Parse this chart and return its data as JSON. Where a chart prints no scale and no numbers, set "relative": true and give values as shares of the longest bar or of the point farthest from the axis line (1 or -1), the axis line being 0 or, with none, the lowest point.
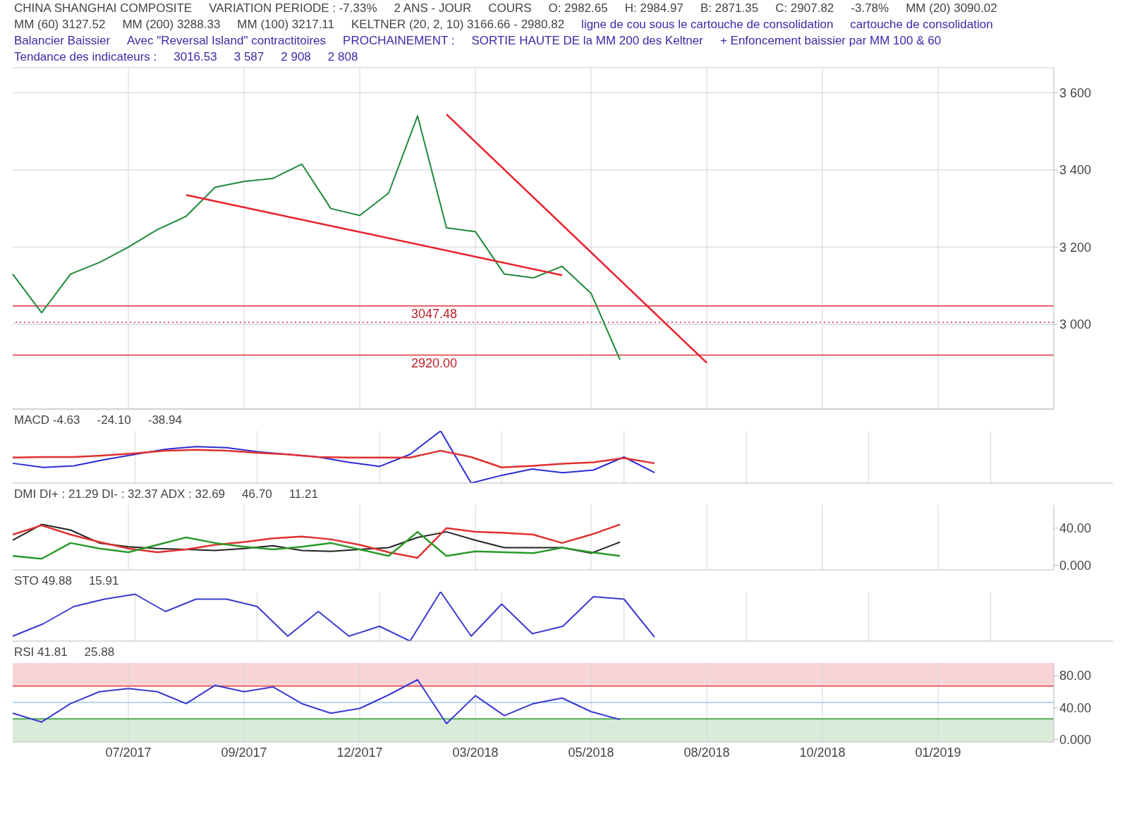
{
  "chart_data": [
    {
      "type": "line",
      "title": "CHINA SHANGHAI COMPOSITE",
      "subtitle": "VARIATION PERIODE : -7.33%",
      "annotations": [
        "2 ANS - JOUR",
        "COURS",
        "O: 2982.65",
        "H: 2984.97",
        "B: 2871.35",
        "C: 2907.82",
        "-3.78%",
        "MM (20)  3090.02",
        "MM (60)  3127.52",
        "MM (200)  3288.33",
        "MM (100)  3217.11",
        "KELTNER (20, 2, 10)  3166.66 - 2980.82",
        "ligne de cou sous le cartouche de consolidation",
        "cartouche de consolidation",
        "Balancier Baissier",
        "Avec \"Reversal Island\" contractitoires",
        "PROCHAINEMENT :",
        "SORTIE HAUTE DE la MM 200 des Keltner",
        "+ Enfoncement baissier par MM 100 & 60",
        "Tendance des indicateurs :",
        "3016.53",
        "3 587",
        "2 908",
        "2 808"
      ],
      "categories": [
        null,
        null,
        null,
        null,
        null,
        null,
        null,
        null,
        null,
        null,
        null,
        null,
        null,
        null,
        null,
        null,
        null,
        null,
        null,
        null,
        null,
        null,
        null,
        null,
        null,
        null,
        null,
        null,
        null,
        null,
        null,
        null,
        null,
        null,
        null,
        null,
        null
      ],
      "series": [
        {
          "color": "#1f8a3c",
          "values": [
            3130,
            3030,
            3130,
            3160,
            3200,
            3245,
            3280,
            3355,
            3370,
            3378,
            3415,
            3300,
            3282,
            3340,
            3540,
            3250,
            3240,
            3130,
            3120,
            3150,
            3080,
            2908,
            null,
            null,
            null,
            null,
            null,
            null,
            null,
            null,
            null,
            null,
            null,
            null,
            null,
            null,
            null
          ]
        },
        {
          "color": "#e8202a",
          "values": [
            null,
            null,
            null,
            null,
            null,
            null,
            3335,
            null,
            null,
            null,
            null,
            null,
            null,
            null,
            null,
            null,
            null,
            null,
            null,
            3127,
            null,
            null,
            null,
            null,
            null,
            null,
            null,
            null,
            null,
            null,
            null,
            null,
            null,
            null,
            null,
            null,
            null
          ]
        },
        {
          "color": "#e8202a",
          "values": [
            null,
            null,
            null,
            null,
            null,
            null,
            null,
            null,
            null,
            null,
            null,
            null,
            null,
            null,
            null,
            3544,
            null,
            null,
            null,
            null,
            null,
            null,
            null,
            null,
            2900,
            null,
            null,
            null,
            null,
            null,
            null,
            null,
            null,
            null,
            null,
            null,
            null
          ]
        }
      ],
      "ref_lines": [
        {
          "axis": "y",
          "value": 3047.48,
          "label": "3047.48",
          "color": "#e0303a"
        },
        {
          "axis": "y",
          "value": 2920,
          "label": "2920.00",
          "color": "#e0303a"
        },
        {
          "axis": "y",
          "value": 3005,
          "color": "#e0303a",
          "line_style": "dotted"
        }
      ],
      "ylim": [
        2780,
        3665
      ],
      "yticks": [
        {
          "value": 3000,
          "label": "3 000"
        },
        {
          "value": 3200,
          "label": "3 200"
        },
        {
          "value": 3400,
          "label": "3 400"
        },
        {
          "value": 3600,
          "label": "3 600"
        }
      ],
      "grid": true,
      "tick_labels": "y"
    },
    {
      "type": "line",
      "title": "MACD  -4.63",
      "relative": true,
      "annotations": [
        "-24.10",
        "-38.94"
      ],
      "categories": [
        null,
        null,
        null,
        null,
        null,
        null,
        null,
        null,
        null,
        null,
        null,
        null,
        null,
        null,
        null,
        null,
        null,
        null,
        null,
        null,
        null,
        null,
        null,
        null,
        null,
        null,
        null,
        null,
        null,
        null,
        null,
        null,
        null,
        null,
        null,
        null,
        null
      ],
      "series": [
        {
          "color": "#2b2bd8",
          "values": [
            0.38,
            0.3,
            0.33,
            0.45,
            0.55,
            0.65,
            0.7,
            0.68,
            0.6,
            0.55,
            0.5,
            0.4,
            0.32,
            0.55,
            1,
            0,
            0.15,
            0.27,
            0.2,
            0.25,
            0.5,
            0.2,
            null,
            null,
            null,
            null,
            null,
            null,
            null,
            null,
            null,
            null,
            null,
            null,
            null,
            null,
            null
          ]
        },
        {
          "color": "#e03030",
          "values": [
            0.49,
            0.5,
            0.5,
            0.53,
            0.57,
            0.62,
            0.64,
            0.62,
            0.58,
            0.55,
            0.5,
            0.49,
            0.49,
            0.49,
            0.62,
            0.5,
            0.3,
            0.33,
            0.37,
            0.4,
            0.48,
            0.38,
            null,
            null,
            null,
            null,
            null,
            null,
            null,
            null,
            null,
            null,
            null,
            null,
            null,
            null,
            null
          ]
        }
      ],
      "grid": "x",
      "tick_labels": false
    },
    {
      "type": "line",
      "title": "DMI  DI+ : 21.29 DI- : 32.37 ADX : 32.69",
      "annotations": [
        "46.70",
        "11.21"
      ],
      "categories": [
        null,
        null,
        null,
        null,
        null,
        null,
        null,
        null,
        null,
        null,
        null,
        null,
        null,
        null,
        null,
        null,
        null,
        null,
        null,
        null,
        null,
        null,
        null,
        null,
        null,
        null,
        null,
        null,
        null,
        null,
        null,
        null,
        null,
        null,
        null,
        null,
        null
      ],
      "series": [
        {
          "color": "#222222",
          "values": [
            27,
            44,
            38,
            24,
            20,
            18,
            17,
            16,
            18,
            21,
            16,
            15,
            17,
            19,
            30,
            36,
            27,
            19,
            19,
            19,
            13,
            25,
            null,
            null,
            null,
            null,
            null,
            null,
            null,
            null,
            null,
            null,
            null,
            null,
            null,
            null,
            null
          ]
        },
        {
          "color": "#e03030",
          "values": [
            33,
            43,
            33,
            25,
            18,
            14,
            17,
            22,
            25,
            29,
            31,
            28,
            22,
            14,
            8,
            40,
            36,
            35,
            33,
            24,
            33,
            44,
            null,
            null,
            null,
            null,
            null,
            null,
            null,
            null,
            null,
            null,
            null,
            null,
            null,
            null,
            null
          ]
        },
        {
          "color": "#2a9a2a",
          "values": [
            10,
            7,
            24,
            18,
            14,
            22,
            30,
            24,
            20,
            17,
            20,
            24,
            17,
            10,
            36,
            10,
            15,
            14,
            13,
            19,
            14,
            10,
            null,
            null,
            null,
            null,
            null,
            null,
            null,
            null,
            null,
            null,
            null,
            null,
            null,
            null,
            null
          ]
        }
      ],
      "ylim": [
        -5,
        65
      ],
      "yticks": [
        {
          "value": 0,
          "label": "0.000"
        },
        {
          "value": 40,
          "label": "40.00"
        }
      ],
      "grid": "x",
      "tick_labels": "y"
    },
    {
      "type": "line",
      "title": "STO  49.88",
      "relative": true,
      "annotations": [
        "15.91"
      ],
      "categories": [
        null,
        null,
        null,
        null,
        null,
        null,
        null,
        null,
        null,
        null,
        null,
        null,
        null,
        null,
        null,
        null,
        null,
        null,
        null,
        null,
        null,
        null,
        null,
        null,
        null,
        null,
        null,
        null,
        null,
        null,
        null,
        null,
        null,
        null,
        null,
        null,
        null
      ],
      "series": [
        {
          "color": "#3a3ad0",
          "values": [
            0.1,
            0.35,
            0.7,
            0.85,
            0.95,
            0.6,
            0.85,
            0.85,
            0.7,
            0.1,
            0.6,
            0.1,
            0.3,
            0,
            1,
            0.1,
            0.75,
            0.15,
            0.3,
            0.9,
            0.85,
            0.08,
            null,
            null,
            null,
            null,
            null,
            null,
            null,
            null,
            null,
            null,
            null,
            null,
            null,
            null,
            null
          ]
        }
      ],
      "grid": "x",
      "tick_labels": false
    },
    {
      "type": "line",
      "title": "RSI  41.81",
      "annotations": [
        "25.88"
      ],
      "categories": [
        null,
        null,
        null,
        null,
        "07/2017",
        null,
        null,
        null,
        "09/2017",
        null,
        null,
        null,
        "12/2017",
        null,
        null,
        null,
        "03/2018",
        null,
        null,
        null,
        "05/2018",
        null,
        null,
        null,
        "08/2018",
        null,
        null,
        null,
        "10/2018",
        null,
        null,
        null,
        "01/2019",
        null,
        null,
        null,
        null
      ],
      "series": [
        {
          "color": "#3a3ad0",
          "values": [
            33,
            22,
            45,
            60,
            64,
            60,
            45,
            68,
            60,
            66,
            45,
            33,
            39,
            56,
            75,
            20,
            55,
            30,
            45,
            52,
            35,
            25,
            null,
            null,
            null,
            null,
            null,
            null,
            null,
            null,
            null,
            null,
            null,
            null,
            null,
            null,
            null
          ]
        }
      ],
      "ref_lines": [
        {
          "axis": "y",
          "value": 67,
          "color": "#e04040"
        },
        {
          "axis": "y",
          "value": 46.5,
          "color": "#9cc8f0"
        },
        {
          "axis": "y",
          "value": 26,
          "color": "#2a9a2a"
        }
      ],
      "bands": [
        {
          "axis": "y",
          "from": 67,
          "to": 96,
          "color": "#f7c9cc"
        },
        {
          "axis": "y",
          "from": -3,
          "to": 26,
          "color": "#cfe6cf"
        }
      ],
      "ylim": [
        -3,
        96
      ],
      "yticks": [
        {
          "value": 0,
          "label": "0.000"
        },
        {
          "value": 40,
          "label": "40.00"
        },
        {
          "value": 80,
          "label": "80.00"
        }
      ],
      "grid": "x"
    }
  ]
}
